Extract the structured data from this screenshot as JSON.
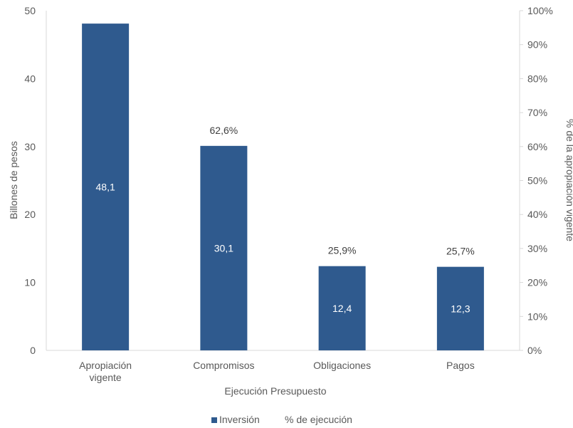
{
  "chart_data": {
    "type": "bar",
    "categories": [
      "Apropiación vigente",
      "Compromisos",
      "Obligaciones",
      "Pagos"
    ],
    "category_lines": [
      [
        "Apropiación",
        "vigente"
      ],
      [
        "Compromisos"
      ],
      [
        "Obligaciones"
      ],
      [
        "Pagos"
      ]
    ],
    "series": [
      {
        "name": "Inversión",
        "type": "bar",
        "axis": "left",
        "values": [
          48.1,
          30.1,
          12.4,
          12.3
        ],
        "labels": [
          "48,1",
          "30,1",
          "12,4",
          "12,3"
        ]
      },
      {
        "name": "% de ejecución",
        "type": "label",
        "axis": "right",
        "values": [
          null,
          62.6,
          25.9,
          25.7
        ],
        "labels": [
          null,
          "62,6%",
          "25,9%",
          "25,7%"
        ]
      }
    ],
    "xlabel": "Ejecución Presupuesto",
    "ylabel": "Billones de pesos",
    "y2label": "% de la apropiación vigente",
    "ylim": [
      0,
      50
    ],
    "yticks": [
      0,
      10,
      20,
      30,
      40,
      50
    ],
    "y2lim": [
      0,
      100
    ],
    "y2ticks": [
      "0%",
      "10%",
      "20%",
      "30%",
      "40%",
      "50%",
      "60%",
      "70%",
      "80%",
      "90%",
      "100%"
    ],
    "grid": false,
    "legend_position": "bottom",
    "colors": {
      "bar": "#2F5A8E",
      "axis": "#D9D9D9",
      "text": "#595959"
    }
  }
}
